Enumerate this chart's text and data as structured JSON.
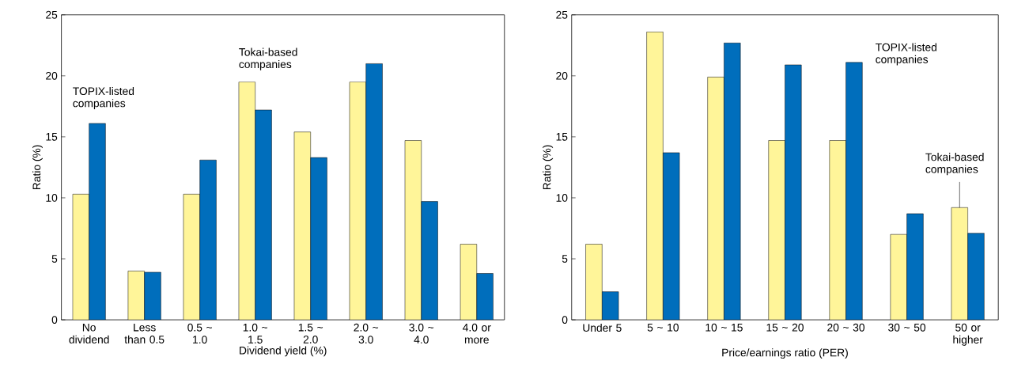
{
  "chart_data": [
    {
      "type": "bar",
      "xlabel": "Dividend yield (%)",
      "ylabel": "Ratio (%)",
      "categories": [
        "No dividend",
        "Less than 0.5",
        "0.5 ~ 1.0",
        "1.0 ~ 1.5",
        "1.5 ~ 2.0",
        "2.0 ~ 3.0",
        "3.0 ~ 4.0",
        "4.0 or more"
      ],
      "series": [
        {
          "name": "Tokai-based companies",
          "color": "#fff599",
          "values": [
            10.3,
            4.0,
            10.3,
            19.5,
            15.4,
            19.5,
            14.7,
            6.2
          ]
        },
        {
          "name": "TOPIX-listed companies",
          "color": "#006ebc",
          "values": [
            16.1,
            3.9,
            13.1,
            17.2,
            13.3,
            21.0,
            9.7,
            3.8
          ]
        }
      ],
      "ylim": [
        0,
        25
      ],
      "yticks": [
        0,
        5,
        10,
        15,
        20,
        25
      ]
    },
    {
      "type": "bar",
      "xlabel": "Price/earnings ratio (PER)",
      "ylabel": "Ratio (%)",
      "categories": [
        "Under 5",
        "5 ~ 10",
        "10 ~ 15",
        "15 ~ 20",
        "20 ~ 30",
        "30 ~ 50",
        "50 or higher"
      ],
      "series": [
        {
          "name": "Tokai-based companies",
          "color": "#fff599",
          "values": [
            6.2,
            23.6,
            19.9,
            14.7,
            14.7,
            7.0,
            9.2
          ]
        },
        {
          "name": "TOPIX-listed companies",
          "color": "#006ebc",
          "values": [
            2.3,
            13.7,
            22.7,
            20.9,
            21.1,
            8.7,
            7.1
          ]
        }
      ],
      "ylim": [
        0,
        25
      ],
      "yticks": [
        0,
        5,
        10,
        15,
        20,
        25
      ]
    }
  ]
}
